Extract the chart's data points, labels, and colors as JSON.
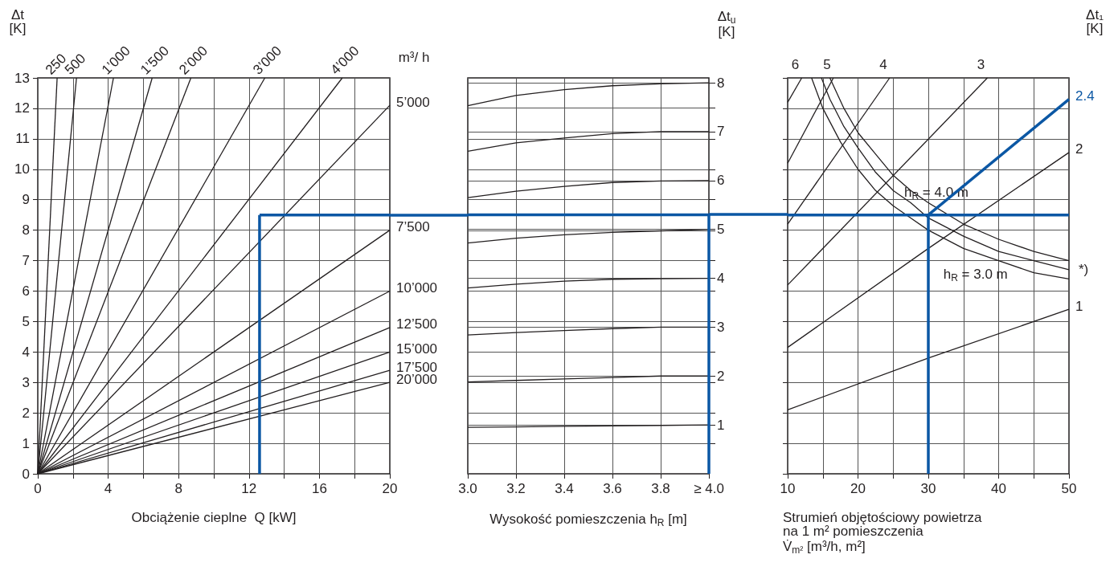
{
  "chart_data": [
    {
      "type": "line",
      "ylabel": "Δt\n[K]",
      "xlabel": "Obciążenie cieplne  Q [kW]",
      "legend_title": "m³/ h",
      "color": "#231f20",
      "marker": "none",
      "grid": true,
      "xlim": [
        0,
        20
      ],
      "xticks": [
        0,
        {
          "value": 2,
          "label": null
        },
        4,
        {
          "value": 6,
          "label": null
        },
        8,
        {
          "value": 10,
          "label": null
        },
        12,
        {
          "value": 14,
          "label": null
        },
        16,
        {
          "value": 18,
          "label": null
        },
        20
      ],
      "ylim": [
        0,
        13
      ],
      "yticks": [
        0,
        1,
        2,
        3,
        4,
        5,
        6,
        7,
        8,
        9,
        10,
        11,
        12,
        13
      ],
      "series": [
        {
          "name": "250",
          "x": [
            0,
            1.1
          ],
          "values": [
            0,
            13
          ]
        },
        {
          "name": "500",
          "x": [
            0,
            2.2
          ],
          "values": [
            0,
            13
          ]
        },
        {
          "name": "1’000",
          "x": [
            0,
            4.3
          ],
          "values": [
            0,
            13
          ]
        },
        {
          "name": "1’500",
          "x": [
            0,
            6.5
          ],
          "values": [
            0,
            13
          ]
        },
        {
          "name": "2’000",
          "x": [
            0,
            8.7
          ],
          "values": [
            0,
            13
          ]
        },
        {
          "name": "3’000",
          "x": [
            0,
            12.9
          ],
          "values": [
            0,
            13
          ]
        },
        {
          "name": "4’000",
          "x": [
            0,
            17.3
          ],
          "values": [
            0,
            13
          ]
        },
        {
          "name": "5’000",
          "x": [
            0,
            20
          ],
          "values": [
            0,
            12.1
          ]
        },
        {
          "name": "7’500",
          "x": [
            0,
            20
          ],
          "values": [
            0,
            8
          ]
        },
        {
          "name": "10’000",
          "x": [
            0,
            20
          ],
          "values": [
            0,
            6
          ]
        },
        {
          "name": "12’500",
          "x": [
            0,
            20
          ],
          "values": [
            0,
            4.8
          ]
        },
        {
          "name": "15’000",
          "x": [
            0,
            20
          ],
          "values": [
            0,
            4
          ]
        },
        {
          "name": "17’500",
          "x": [
            0,
            20
          ],
          "values": [
            0,
            3.4
          ]
        },
        {
          "name": "20’000",
          "x": [
            0,
            20
          ],
          "values": [
            0,
            3
          ]
        },
        {
          "color": "#0b57a4",
          "x": [
            20,
            12.6
          ],
          "values": [
            8.5,
            8.5
          ]
        },
        {
          "color": "#0b57a4",
          "x": [
            12.6,
            12.6
          ],
          "values": [
            8.5,
            0
          ]
        }
      ]
    },
    {
      "type": "line",
      "xlabel": "Wysokość pomieszczenia h$_{R}$ [m]",
      "y2label": "Δt$_{u}$\n[K]",
      "color": "#231f20",
      "marker": "none",
      "grid": true,
      "xlim": [
        3,
        4
      ],
      "xticks": [
        {
          "value": 3,
          "label": "3.0"
        },
        3.2,
        3.4,
        3.6,
        3.8,
        {
          "value": 4,
          "label": "≥ 4.0"
        }
      ],
      "y2lim": [
        0,
        8.1
      ],
      "y2ticks": [
        {
          "value": 0.62,
          "label": null
        },
        1,
        {
          "value": 1.25,
          "label": null
        },
        {
          "value": 1.87,
          "label": null
        },
        2,
        {
          "value": 2.49,
          "label": null
        },
        3,
        {
          "value": 3.12,
          "label": null
        },
        {
          "value": 3.74,
          "label": null
        },
        4,
        {
          "value": 4.36,
          "label": null
        },
        {
          "value": 4.98,
          "label": null
        },
        5,
        {
          "value": 5.61,
          "label": null
        },
        6,
        {
          "value": 6.23,
          "label": null
        },
        {
          "value": 6.85,
          "label": null
        },
        7,
        {
          "value": 7.48,
          "label": null
        },
        8
      ],
      "series": [
        {
          "axis": "y2",
          "x": [
            3,
            3.2,
            3.4,
            3.6,
            3.8,
            4
          ],
          "values": [
            7.53,
            7.74,
            7.86,
            7.94,
            7.98,
            8
          ]
        },
        {
          "axis": "y2",
          "x": [
            3,
            3.2,
            3.4,
            3.6,
            3.8,
            4
          ],
          "values": [
            6.6,
            6.77,
            6.87,
            6.96,
            7,
            7
          ]
        },
        {
          "axis": "y2",
          "x": [
            3,
            3.2,
            3.4,
            3.6,
            3.8,
            4
          ],
          "values": [
            5.65,
            5.78,
            5.88,
            5.96,
            5.99,
            6
          ]
        },
        {
          "axis": "y2",
          "x": [
            3,
            3.2,
            3.4,
            3.6,
            3.8,
            4
          ],
          "values": [
            4.72,
            4.82,
            4.89,
            4.94,
            4.97,
            5
          ]
        },
        {
          "axis": "y2",
          "x": [
            3,
            3.2,
            3.4,
            3.6,
            3.8,
            4
          ],
          "values": [
            3.8,
            3.88,
            3.94,
            3.98,
            3.99,
            4
          ]
        },
        {
          "axis": "y2",
          "x": [
            3,
            3.2,
            3.4,
            3.6,
            3.8,
            4
          ],
          "values": [
            2.84,
            2.89,
            2.93,
            2.97,
            3,
            3
          ]
        },
        {
          "axis": "y2",
          "x": [
            3,
            3.2,
            3.4,
            3.6,
            3.8,
            4
          ],
          "values": [
            1.88,
            1.91,
            1.94,
            1.97,
            2,
            2
          ]
        },
        {
          "axis": "y2",
          "x": [
            3,
            3.2,
            3.4,
            3.6,
            3.8,
            4
          ],
          "values": [
            0.95,
            0.96,
            0.97,
            0.98,
            0.99,
            1
          ]
        },
        {
          "axis": "y2",
          "color": "#0b57a4",
          "x": [
            3,
            4
          ],
          "values": [
            5.3,
            5.3
          ]
        },
        {
          "axis": "y2",
          "color": "#0b57a4",
          "x": [
            4,
            4
          ],
          "values": [
            0,
            5.3
          ]
        }
      ]
    },
    {
      "type": "line",
      "ylabel": "Δt₁\n[K]",
      "xlabel": "Strumień objętościowy powietrza\nna 1 m² pomieszczenia\nV̇$_{m²}$ [m³/h, m²]",
      "color": "#231f20",
      "marker": "none",
      "grid": true,
      "tick_labels": "x",
      "xlim": [
        10,
        50
      ],
      "xticks": [
        10,
        {
          "value": 15,
          "label": null
        },
        20,
        {
          "value": 25,
          "label": null
        },
        30,
        {
          "value": 35,
          "label": null
        },
        40,
        {
          "value": 45,
          "label": null
        },
        50
      ],
      "ylim": [
        0,
        13
      ],
      "yticks": [
        0,
        1,
        2,
        3,
        4,
        5,
        6,
        7,
        8,
        9,
        10,
        11,
        12,
        13
      ],
      "annotations": [
        {
          "text": "*)",
          "x": 50,
          "y": 6.7
        }
      ],
      "series": [
        {
          "name": "1",
          "x": [
            10,
            30,
            50
          ],
          "values": [
            2.1,
            3.8,
            5.4
          ]
        },
        {
          "name": "2",
          "x": [
            10,
            30,
            50
          ],
          "values": [
            4.15,
            7.4,
            10.55
          ]
        },
        {
          "name": "3",
          "x": [
            10,
            38.4
          ],
          "values": [
            6.2,
            13
          ]
        },
        {
          "name": "4",
          "x": [
            10,
            24.5
          ],
          "values": [
            8.2,
            13
          ]
        },
        {
          "name": "5",
          "x": [
            10,
            16.5
          ],
          "values": [
            10.2,
            13
          ]
        },
        {
          "name": "6",
          "x": [
            10,
            12
          ],
          "values": [
            12.2,
            13
          ]
        },
        {
          "x": [
            16,
            18,
            20,
            22.5,
            25,
            27.5,
            30,
            35,
            40,
            45,
            50
          ],
          "values": [
            13,
            12,
            11.2,
            10.5,
            9.8,
            9.3,
            8.9,
            8.2,
            7.7,
            7.3,
            7
          ]
        },
        {
          "name": "h$_{R}$ = 4.0 m",
          "x": [
            14.8,
            16,
            18,
            20,
            22.5,
            25,
            27.5,
            30,
            35,
            40,
            45,
            50
          ],
          "values": [
            13,
            12.3,
            11.4,
            10.7,
            9.9,
            9.3,
            8.9,
            8.4,
            7.8,
            7.3,
            7,
            6.7
          ]
        },
        {
          "name": "h$_{R}$ = 3.0 m",
          "x": [
            13.4,
            15,
            17.5,
            20,
            22.5,
            25,
            27.5,
            30,
            35,
            40,
            45,
            50
          ],
          "values": [
            13,
            12,
            10.9,
            10,
            9.3,
            8.8,
            8.4,
            8,
            7.4,
            7,
            6.6,
            6.4
          ]
        },
        {
          "color": "#0b57a4",
          "x": [
            10,
            50
          ],
          "values": [
            8.5,
            8.5
          ]
        },
        {
          "color": "#0b57a4",
          "x": [
            30,
            30
          ],
          "values": [
            0,
            8.5
          ]
        },
        {
          "name": "2.4",
          "color": "#0b57a4",
          "x": [
            30,
            50
          ],
          "values": [
            8.5,
            12.3
          ]
        }
      ]
    }
  ]
}
